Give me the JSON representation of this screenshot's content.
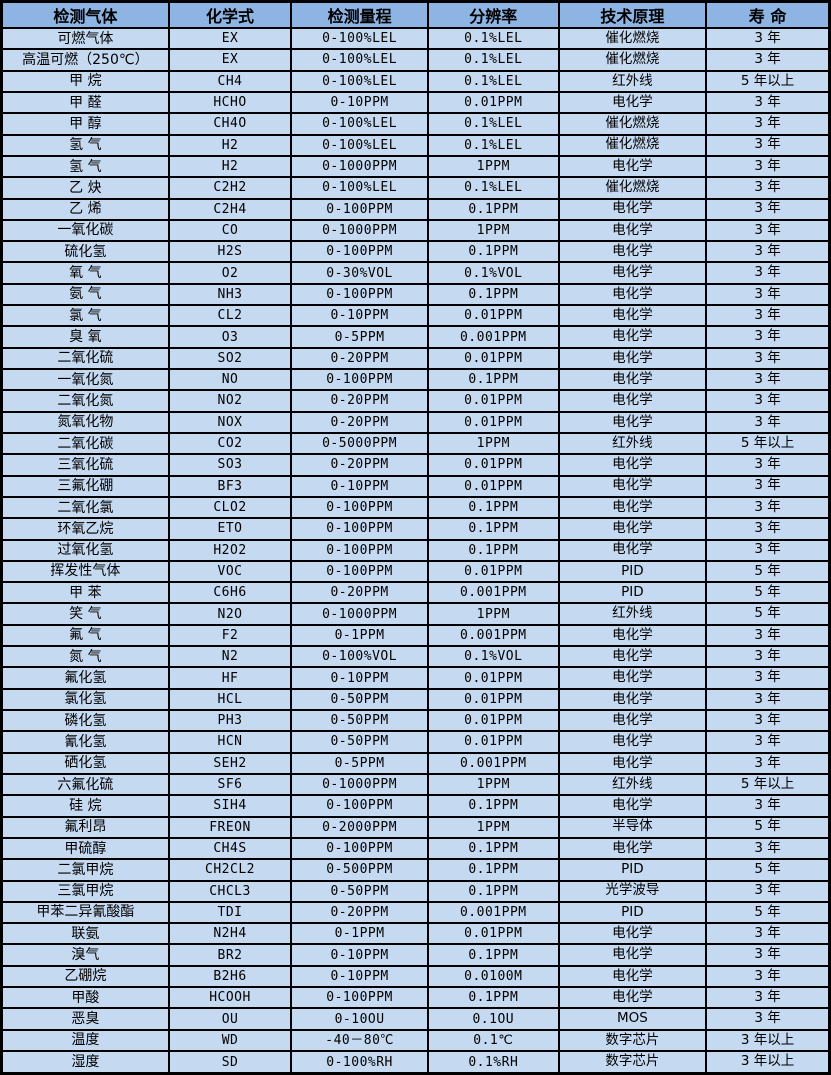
{
  "colors": {
    "header_bg": "#8DB4E2",
    "row_bg": "#C5D9F1",
    "border": "#000000",
    "text": "#000000"
  },
  "table": {
    "columns": [
      {
        "key": "gas",
        "label": "检测气体"
      },
      {
        "key": "formula",
        "label": "化学式"
      },
      {
        "key": "range",
        "label": "检测量程"
      },
      {
        "key": "resolution",
        "label": "分辨率"
      },
      {
        "key": "principle",
        "label": "技术原理"
      },
      {
        "key": "lifespan",
        "label": "寿 命"
      }
    ],
    "rows": [
      {
        "gas": "可燃气体",
        "formula": "EX",
        "range": "0-100%LEL",
        "resolution": "0.1%LEL",
        "principle": "催化燃烧",
        "lifespan": "3 年"
      },
      {
        "gas": "高温可燃（250℃）",
        "formula": "EX",
        "range": "0-100%LEL",
        "resolution": "0.1%LEL",
        "principle": "催化燃烧",
        "lifespan": "3 年"
      },
      {
        "gas": "甲  烷",
        "formula": "CH4",
        "range": "0-100%LEL",
        "resolution": "0.1%LEL",
        "principle": "红外线",
        "lifespan": "5 年以上"
      },
      {
        "gas": "甲  醛",
        "formula": "HCHO",
        "range": "0-10PPM",
        "resolution": "0.01PPM",
        "principle": "电化学",
        "lifespan": "3 年"
      },
      {
        "gas": "甲  醇",
        "formula": "CH4O",
        "range": "0-100%LEL",
        "resolution": "0.1%LEL",
        "principle": "催化燃烧",
        "lifespan": "3 年"
      },
      {
        "gas": "氢  气",
        "formula": "H2",
        "range": "0-100%LEL",
        "resolution": "0.1%LEL",
        "principle": "催化燃烧",
        "lifespan": "3 年"
      },
      {
        "gas": "氢  气",
        "formula": "H2",
        "range": "0-1000PPM",
        "resolution": "1PPM",
        "principle": "电化学",
        "lifespan": "3 年"
      },
      {
        "gas": "乙  炔",
        "formula": "C2H2",
        "range": "0-100%LEL",
        "resolution": "0.1%LEL",
        "principle": "催化燃烧",
        "lifespan": "3 年"
      },
      {
        "gas": "乙  烯",
        "formula": "C2H4",
        "range": "0-100PPM",
        "resolution": "0.1PPM",
        "principle": "电化学",
        "lifespan": "3 年"
      },
      {
        "gas": "一氧化碳",
        "formula": "CO",
        "range": "0-1000PPM",
        "resolution": "1PPM",
        "principle": "电化学",
        "lifespan": "3 年"
      },
      {
        "gas": "硫化氢",
        "formula": "H2S",
        "range": "0-100PPM",
        "resolution": "0.1PPM",
        "principle": "电化学",
        "lifespan": "3 年"
      },
      {
        "gas": "氧  气",
        "formula": "O2",
        "range": "0-30%VOL",
        "resolution": "0.1%VOL",
        "principle": "电化学",
        "lifespan": "3 年"
      },
      {
        "gas": "氨  气",
        "formula": "NH3",
        "range": "0-100PPM",
        "resolution": "0.1PPM",
        "principle": "电化学",
        "lifespan": "3 年"
      },
      {
        "gas": "氯  气",
        "formula": "CL2",
        "range": "0-10PPM",
        "resolution": "0.01PPM",
        "principle": "电化学",
        "lifespan": "3 年"
      },
      {
        "gas": "臭  氧",
        "formula": "O3",
        "range": "0-5PPM",
        "resolution": "0.001PPM",
        "principle": "电化学",
        "lifespan": "3 年"
      },
      {
        "gas": "二氧化硫",
        "formula": "SO2",
        "range": "0-20PPM",
        "resolution": "0.01PPM",
        "principle": "电化学",
        "lifespan": "3 年"
      },
      {
        "gas": "一氧化氮",
        "formula": "NO",
        "range": "0-100PPM",
        "resolution": "0.1PPM",
        "principle": "电化学",
        "lifespan": "3 年"
      },
      {
        "gas": "二氧化氮",
        "formula": "NO2",
        "range": "0-20PPM",
        "resolution": "0.01PPM",
        "principle": "电化学",
        "lifespan": "3 年"
      },
      {
        "gas": "氮氧化物",
        "formula": "NOX",
        "range": "0-20PPM",
        "resolution": "0.01PPM",
        "principle": "电化学",
        "lifespan": "3 年"
      },
      {
        "gas": "二氧化碳",
        "formula": "CO2",
        "range": "0-5000PPM",
        "resolution": "1PPM",
        "principle": "红外线",
        "lifespan": "5 年以上"
      },
      {
        "gas": "三氧化硫",
        "formula": "SO3",
        "range": "0-20PPM",
        "resolution": "0.01PPM",
        "principle": "电化学",
        "lifespan": "3 年"
      },
      {
        "gas": "三氟化硼",
        "formula": "BF3",
        "range": "0-10PPM",
        "resolution": "0.01PPM",
        "principle": "电化学",
        "lifespan": "3 年"
      },
      {
        "gas": "二氧化氯",
        "formula": "CLO2",
        "range": "0-100PPM",
        "resolution": "0.1PPM",
        "principle": "电化学",
        "lifespan": "3 年"
      },
      {
        "gas": "环氧乙烷",
        "formula": "ETO",
        "range": "0-100PPM",
        "resolution": "0.1PPM",
        "principle": "电化学",
        "lifespan": "3 年"
      },
      {
        "gas": "过氧化氢",
        "formula": "H2O2",
        "range": "0-100PPM",
        "resolution": "0.1PPM",
        "principle": "电化学",
        "lifespan": "3 年"
      },
      {
        "gas": "挥发性气体",
        "formula": "VOC",
        "range": "0-100PPM",
        "resolution": "0.01PPM",
        "principle": "PID",
        "lifespan": "5 年"
      },
      {
        "gas": "甲  苯",
        "formula": "C6H6",
        "range": "0-20PPM",
        "resolution": "0.001PPM",
        "principle": "PID",
        "lifespan": "5 年"
      },
      {
        "gas": "笑  气",
        "formula": "N2O",
        "range": "0-1000PPM",
        "resolution": "1PPM",
        "principle": "红外线",
        "lifespan": "5 年"
      },
      {
        "gas": "氟  气",
        "formula": "F2",
        "range": "0-1PPM",
        "resolution": "0.001PPM",
        "principle": "电化学",
        "lifespan": "3 年"
      },
      {
        "gas": "氮  气",
        "formula": "N2",
        "range": "0-100%VOL",
        "resolution": "0.1%VOL",
        "principle": "电化学",
        "lifespan": "3 年"
      },
      {
        "gas": "氟化氢",
        "formula": "HF",
        "range": "0-10PPM",
        "resolution": "0.01PPM",
        "principle": "电化学",
        "lifespan": "3 年"
      },
      {
        "gas": "氯化氢",
        "formula": "HCL",
        "range": "0-50PPM",
        "resolution": "0.01PPM",
        "principle": "电化学",
        "lifespan": "3 年"
      },
      {
        "gas": "磷化氢",
        "formula": "PH3",
        "range": "0-50PPM",
        "resolution": "0.01PPM",
        "principle": "电化学",
        "lifespan": "3 年"
      },
      {
        "gas": "氰化氢",
        "formula": "HCN",
        "range": "0-50PPM",
        "resolution": "0.01PPM",
        "principle": "电化学",
        "lifespan": "3 年"
      },
      {
        "gas": "硒化氢",
        "formula": "SEH2",
        "range": "0-5PPM",
        "resolution": "0.001PPM",
        "principle": "电化学",
        "lifespan": "3 年"
      },
      {
        "gas": "六氟化硫",
        "formula": "SF6",
        "range": "0-1000PPM",
        "resolution": "1PPM",
        "principle": "红外线",
        "lifespan": "5 年以上"
      },
      {
        "gas": "硅  烷",
        "formula": "SIH4",
        "range": "0-100PPM",
        "resolution": "0.1PPM",
        "principle": "电化学",
        "lifespan": "3 年"
      },
      {
        "gas": "氟利昂",
        "formula": "FREON",
        "range": "0-2000PPM",
        "resolution": "1PPM",
        "principle": "半导体",
        "lifespan": "5 年"
      },
      {
        "gas": "甲硫醇",
        "formula": "CH4S",
        "range": "0-100PPM",
        "resolution": "0.1PPM",
        "principle": "电化学",
        "lifespan": "3 年"
      },
      {
        "gas": "二氯甲烷",
        "formula": "CH2CL2",
        "range": "0-500PPM",
        "resolution": "0.1PPM",
        "principle": "PID",
        "lifespan": "5 年"
      },
      {
        "gas": "三氯甲烷",
        "formula": "CHCL3",
        "range": "0-50PPM",
        "resolution": "0.1PPM",
        "principle": "光学波导",
        "lifespan": "3 年"
      },
      {
        "gas": "甲苯二异氰酸酯",
        "formula": "TDI",
        "range": "0-20PPM",
        "resolution": "0.001PPM",
        "principle": "PID",
        "lifespan": "5 年"
      },
      {
        "gas": "联氨",
        "formula": "N2H4",
        "range": "0-1PPM",
        "resolution": "0.01PPM",
        "principle": "电化学",
        "lifespan": "3 年"
      },
      {
        "gas": "溴气",
        "formula": "BR2",
        "range": "0-10PPM",
        "resolution": "0.1PPM",
        "principle": "电化学",
        "lifespan": "3 年"
      },
      {
        "gas": "乙硼烷",
        "formula": "B2H6",
        "range": "0-10PPM",
        "resolution": "0.0100M",
        "principle": "电化学",
        "lifespan": "3 年"
      },
      {
        "gas": "甲酸",
        "formula": "HCOOH",
        "range": "0-100PPM",
        "resolution": "0.1PPM",
        "principle": "电化学",
        "lifespan": "3 年"
      },
      {
        "gas": "恶臭",
        "formula": "OU",
        "range": "0-10OU",
        "resolution": "0.1OU",
        "principle": "MOS",
        "lifespan": "3 年"
      },
      {
        "gas": "温度",
        "formula": "WD",
        "range": "-40－80℃",
        "resolution": "0.1℃",
        "principle": "数字芯片",
        "lifespan": "3 年以上"
      },
      {
        "gas": "湿度",
        "formula": "SD",
        "range": "0-100%RH",
        "resolution": "0.1%RH",
        "principle": "数字芯片",
        "lifespan": "3 年以上"
      }
    ]
  }
}
